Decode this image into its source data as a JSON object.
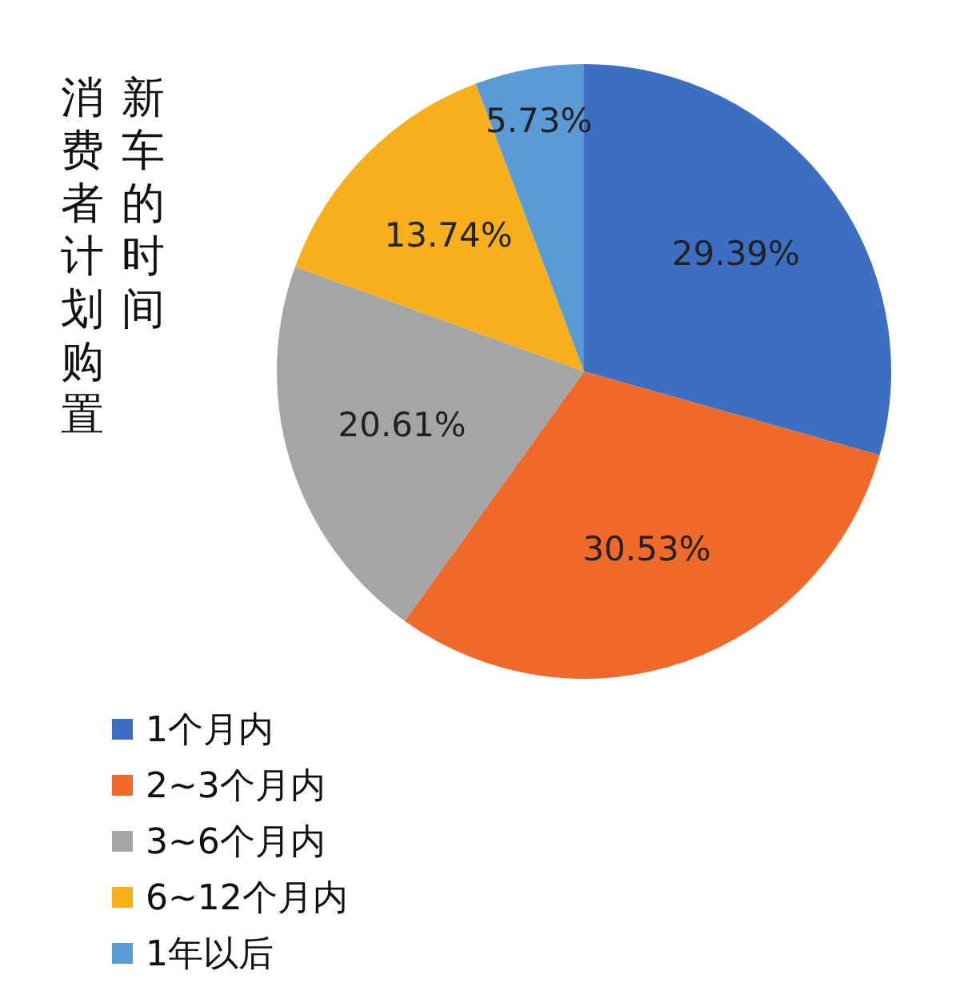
{
  "chart_data": {
    "type": "pie",
    "title": "消费者计划购置新车的时间",
    "categories": [
      "1个月内",
      "2~3个月内",
      "3~6个月内",
      "6~12个月内",
      "1年以后"
    ],
    "values": [
      29.39,
      30.53,
      20.61,
      13.74,
      5.73
    ],
    "colors": [
      "#3c6fc2",
      "#ef6a2a",
      "#a5a5a5",
      "#f7b01c",
      "#5a9bd6"
    ],
    "value_labels": [
      "29.39%",
      "30.53%",
      "20.61%",
      "13.74%",
      "5.73%"
    ],
    "legend": "bottom left"
  }
}
